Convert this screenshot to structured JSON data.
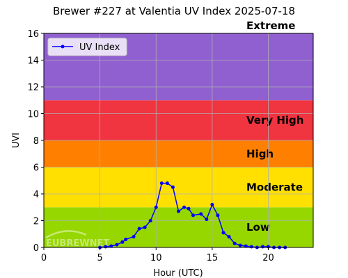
{
  "chart_data": {
    "type": "line",
    "title": "Brewer #227 at Valentia UV Index 2025-07-18",
    "xlabel": "Hour (UTC)",
    "ylabel": "UVI",
    "xlim": [
      0,
      24
    ],
    "ylim": [
      0,
      16
    ],
    "xticks": [
      0,
      5,
      10,
      15,
      20
    ],
    "yticks": [
      0,
      2,
      4,
      6,
      8,
      10,
      12,
      14,
      16
    ],
    "grid": true,
    "legend": {
      "placement": "top-left",
      "entries": [
        "UV Index"
      ]
    },
    "series": [
      {
        "name": "UV Index",
        "color": "#0000ff",
        "x": [
          5.0,
          5.5,
          6.0,
          6.5,
          7.0,
          7.3,
          8.0,
          8.5,
          9.0,
          9.5,
          10.0,
          10.5,
          11.0,
          11.5,
          12.0,
          12.5,
          12.9,
          13.3,
          14.0,
          14.5,
          15.0,
          15.5,
          16.0,
          16.5,
          17.0,
          17.5,
          18.0,
          18.5,
          19.0,
          19.5,
          20.0,
          20.5,
          21.0,
          21.5
        ],
        "y": [
          0.0,
          0.05,
          0.1,
          0.2,
          0.4,
          0.6,
          0.8,
          1.4,
          1.5,
          2.0,
          3.0,
          4.8,
          4.8,
          4.5,
          2.7,
          3.0,
          2.9,
          2.4,
          2.5,
          2.1,
          3.2,
          2.4,
          1.1,
          0.8,
          0.3,
          0.15,
          0.1,
          0.05,
          0.0,
          0.05,
          0.05,
          0.0,
          0.0,
          0.0
        ]
      }
    ],
    "bands": [
      {
        "label": "Low",
        "from": 0,
        "to": 3,
        "color": "#97d700"
      },
      {
        "label": "Moderate",
        "from": 3,
        "to": 6,
        "color": "#ffe000"
      },
      {
        "label": "High",
        "from": 6,
        "to": 8,
        "color": "#ff8000"
      },
      {
        "label": "Very High",
        "from": 8,
        "to": 11,
        "color": "#f03440"
      },
      {
        "label": "Extreme",
        "from": 11,
        "to": 16,
        "color": "#9060d0"
      }
    ],
    "watermark": "EUBREWNET"
  }
}
